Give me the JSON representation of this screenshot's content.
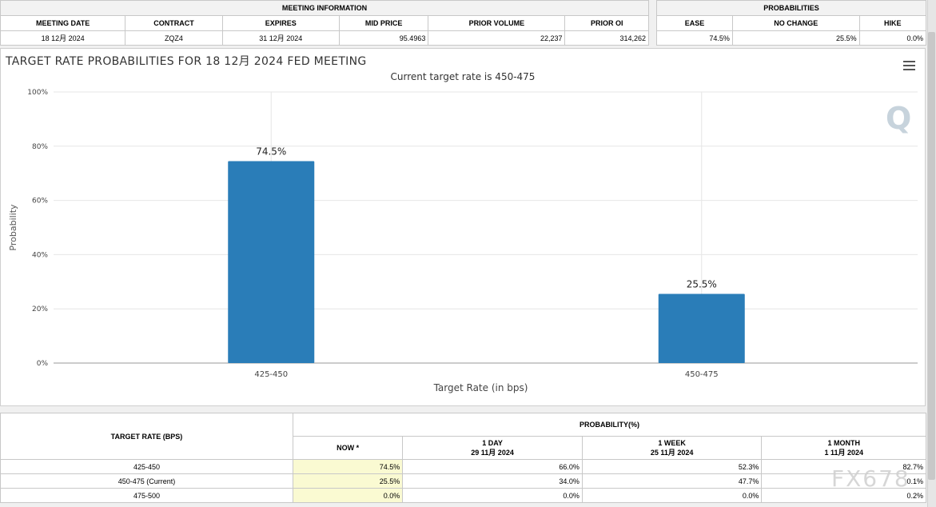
{
  "meeting_info": {
    "section_label": "MEETING INFORMATION",
    "headers": [
      "MEETING DATE",
      "CONTRACT",
      "EXPIRES",
      "MID PRICE",
      "PRIOR VOLUME",
      "PRIOR OI"
    ],
    "row": [
      "18 12月 2024",
      "ZQZ4",
      "31 12月 2024",
      "95.4963",
      "22,237",
      "314,262"
    ]
  },
  "probabilities": {
    "section_label": "PROBABILITIES",
    "headers": [
      "EASE",
      "NO CHANGE",
      "HIKE"
    ],
    "row": [
      "74.5%",
      "25.5%",
      "0.0%"
    ]
  },
  "chart": {
    "title": "TARGET RATE PROBABILITIES FOR 18 12月 2024 FED MEETING",
    "subtitle": "Current target rate is 450-475",
    "menu_icon": "hamburger-menu-icon",
    "watermark": "Q"
  },
  "chart_data": {
    "type": "bar",
    "categories": [
      "425-450",
      "450-475"
    ],
    "values": [
      74.5,
      25.5
    ],
    "data_labels": [
      "74.5%",
      "25.5%"
    ],
    "xlabel": "Target Rate (in bps)",
    "ylabel": "Probability",
    "ylim": [
      0,
      100
    ],
    "yticks": [
      0,
      20,
      40,
      60,
      80,
      100
    ],
    "ytick_labels": [
      "0%",
      "20%",
      "40%",
      "60%",
      "80%",
      "100%"
    ],
    "grid": true,
    "bar_color": "#2a7db8"
  },
  "prob_table": {
    "row_header": "TARGET RATE (BPS)",
    "group_header": "PROBABILITY(%)",
    "columns": [
      {
        "label": "NOW *",
        "sub": ""
      },
      {
        "label": "1 DAY",
        "sub": "29 11月 2024"
      },
      {
        "label": "1 WEEK",
        "sub": "25 11月 2024"
      },
      {
        "label": "1 MONTH",
        "sub": "1 11月 2024"
      }
    ],
    "rows": [
      {
        "rate": "425-450",
        "values": [
          "74.5%",
          "66.0%",
          "52.3%",
          "82.7%"
        ]
      },
      {
        "rate": "450-475 (Current)",
        "values": [
          "25.5%",
          "34.0%",
          "47.7%",
          "0.1%"
        ]
      },
      {
        "rate": "475-500",
        "values": [
          "0.0%",
          "0.0%",
          "0.0%",
          "0.2%"
        ]
      }
    ]
  },
  "watermark_fx": "FX678"
}
